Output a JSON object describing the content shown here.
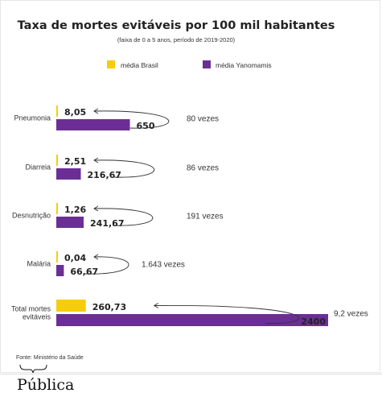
{
  "source": "Fonte: Ministério da Saúde",
  "brand": "Pública",
  "colors": {
    "brasil": "#f5cd0a",
    "yanomami": "#6b2e96",
    "arrow": "#333333"
  },
  "chart_data": {
    "type": "bar",
    "orientation": "horizontal",
    "title": "Taxa de mortes evitáveis por 100 mil habitantes",
    "subtitle": "(faixa de 0 a 5 anos, período de 2019-2020)",
    "legend_position": "top",
    "categories": [
      "Pneumonia",
      "Diarreia",
      "Desnutrição",
      "Malária",
      "Total mortes\nevitáveis"
    ],
    "series": [
      {
        "name": "média Brasil",
        "values": [
          8.05,
          2.51,
          1.26,
          0.04,
          260.73
        ],
        "labels": [
          "8,05",
          "2,51",
          "1,26",
          "0,04",
          "260,73"
        ]
      },
      {
        "name": "média Yanomamis",
        "values": [
          650,
          216.67,
          241.67,
          66.67,
          2400
        ],
        "labels": [
          "650",
          "216,67",
          "241,67",
          "66,67",
          "2400"
        ]
      }
    ],
    "annotations": [
      "80 vezes",
      "86 vezes",
      "191 vezes",
      "1.643 vezes",
      "9,2 vezes"
    ],
    "grid": false
  }
}
